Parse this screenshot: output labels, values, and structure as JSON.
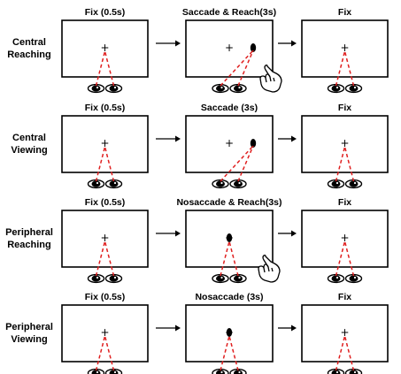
{
  "rows": [
    {
      "label_lines": [
        "Central",
        "Reaching"
      ],
      "titles": [
        "Fix (0.5s)",
        "Saccade & Reach(3s)",
        "Fix"
      ],
      "middle": {
        "target": "central",
        "gaze": "target",
        "hand": true
      }
    },
    {
      "label_lines": [
        "Central",
        "Viewing"
      ],
      "titles": [
        "Fix (0.5s)",
        "Saccade (3s)",
        "Fix"
      ],
      "middle": {
        "target": "central",
        "gaze": "target",
        "hand": false
      }
    },
    {
      "label_lines": [
        "Peripheral",
        "Reaching"
      ],
      "titles": [
        "Fix (0.5s)",
        "Nosaccade & Reach(3s)",
        "Fix"
      ],
      "middle": {
        "target": "peripheral",
        "gaze": "fixation",
        "hand": true
      }
    },
    {
      "label_lines": [
        "Peripheral",
        "Viewing"
      ],
      "titles": [
        "Fix (0.5s)",
        "Nosaccade (3s)",
        "Fix"
      ],
      "middle": {
        "target": "peripheral",
        "gaze": "fixation",
        "hand": false
      }
    }
  ],
  "fixation_glyph": "+",
  "colors": {
    "gaze_line": "#e02020",
    "frame": "#000000",
    "pupil": "#000000"
  },
  "icons": {
    "hand": "pointing-hand-icon",
    "eye": "eye-icon",
    "target": "target-dot-icon",
    "arrow": "arrow-right-icon"
  }
}
